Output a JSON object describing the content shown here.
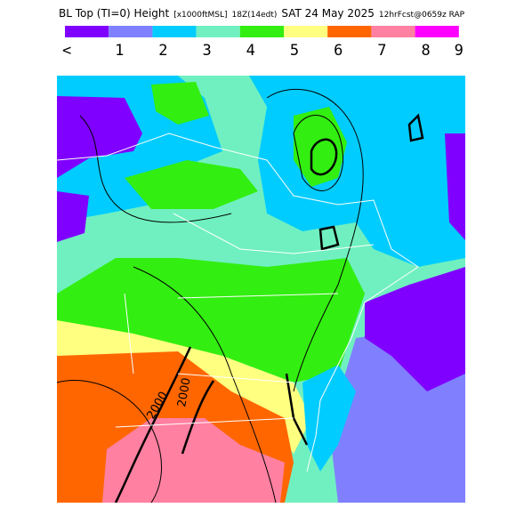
{
  "header": {
    "title_parts": [
      "BL Top (TI=0) Height",
      "[x1000ftMSL]",
      "18Z(14edt)",
      "SAT 24 May 2025",
      "12hrFcst@0659z RAP"
    ]
  },
  "legend": {
    "labels": [
      "<",
      "1",
      "2",
      "3",
      "4",
      "5",
      "6",
      "7",
      "8",
      "9"
    ],
    "colors": [
      "#8000ff",
      "#8080ff",
      "#00ccff",
      "#70f0c0",
      "#33ee11",
      "#ffff80",
      "#ff6600",
      "#ff80a0",
      "#ff00ff"
    ]
  },
  "map": {
    "contour_labels": [
      "2000",
      "2000"
    ]
  }
}
